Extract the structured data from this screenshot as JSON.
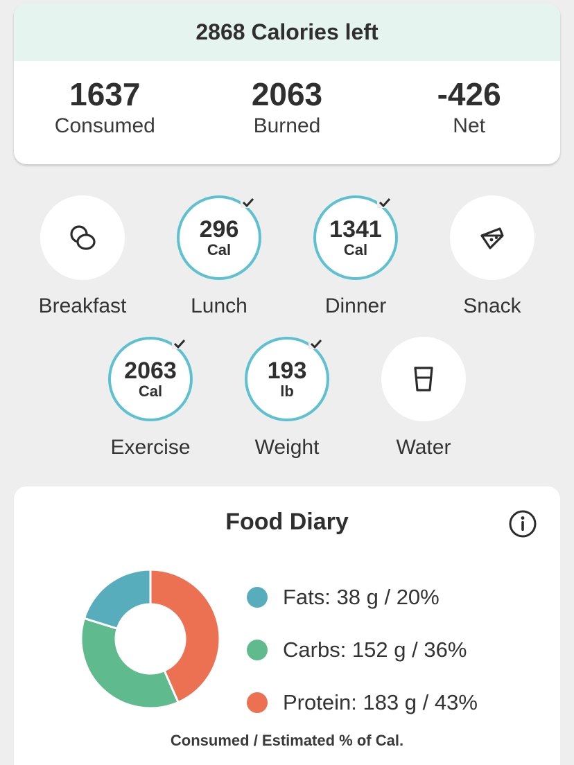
{
  "summary": {
    "header": "2868 Calories left",
    "stats": [
      {
        "value": "1637",
        "label": "Consumed"
      },
      {
        "value": "2063",
        "label": "Burned"
      },
      {
        "value": "-426",
        "label": "Net"
      }
    ]
  },
  "tiles": {
    "breakfast": {
      "label": "Breakfast",
      "icon": "egg-icon"
    },
    "lunch": {
      "value": "296",
      "unit": "Cal",
      "label": "Lunch",
      "logged": true
    },
    "dinner": {
      "value": "1341",
      "unit": "Cal",
      "label": "Dinner",
      "logged": true
    },
    "snack": {
      "label": "Snack",
      "icon": "snack-icon"
    },
    "exercise": {
      "value": "2063",
      "unit": "Cal",
      "label": "Exercise",
      "logged": true
    },
    "weight": {
      "value": "193",
      "unit": "lb",
      "label": "Weight",
      "logged": true
    },
    "water": {
      "label": "Water",
      "icon": "water-glass-icon"
    }
  },
  "diary": {
    "title": "Food Diary",
    "footnote": "Consumed / Estimated % of Cal.",
    "macros": [
      {
        "name": "Fats",
        "text": "Fats:  38 g / 20%",
        "grams": 38,
        "percent": 20,
        "color": "#58adbd"
      },
      {
        "name": "Carbs",
        "text": "Carbs:  152 g / 36%",
        "grams": 152,
        "percent": 36,
        "color": "#5fbb8e"
      },
      {
        "name": "Protein",
        "text": "Protein:  183 g / 43%",
        "grams": 183,
        "percent": 43,
        "color": "#ec7152"
      }
    ]
  },
  "colors": {
    "accent_ring": "#5ec1cf",
    "header_bg": "#e5f4ef",
    "page_bg": "#eeeeee"
  }
}
